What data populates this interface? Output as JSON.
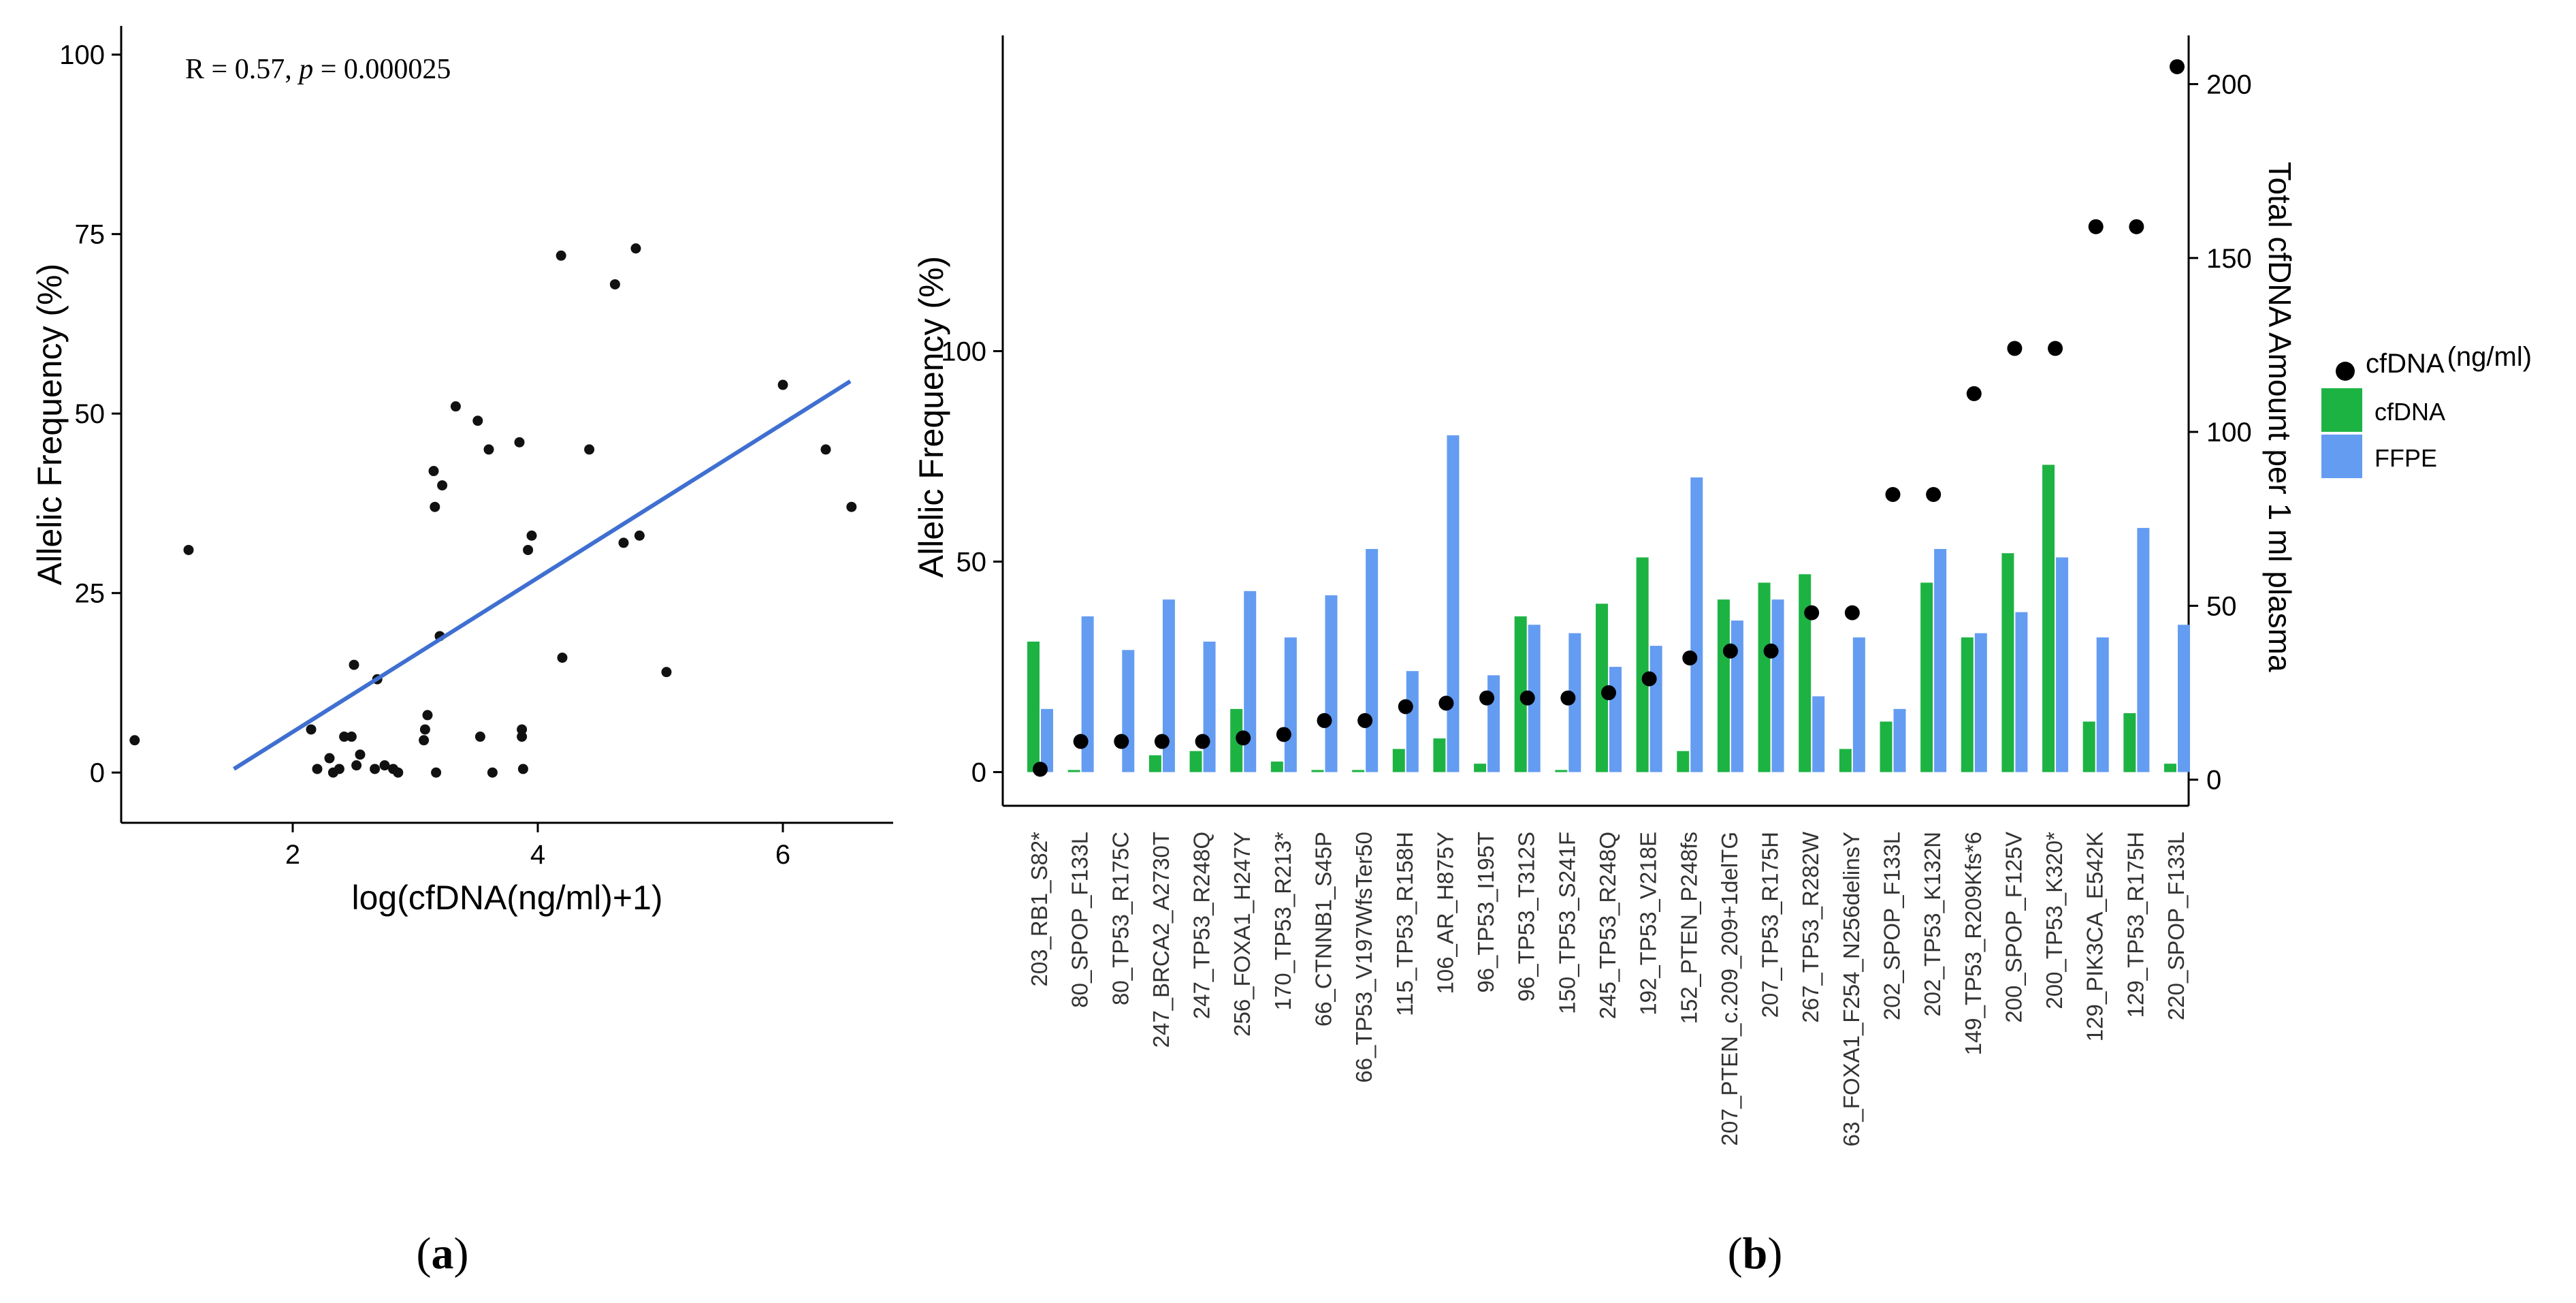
{
  "chart_data": [
    {
      "panel": "a",
      "type": "scatter",
      "annotation_prefix": "R = 0.57, ",
      "annotation_p": "p",
      "annotation_suffix": " = 0.000025",
      "xlabel": "log(cfDNA(ng/ml)+1)",
      "ylabel": "Allelic Frequency (%)",
      "xlim": [
        0.6,
        6.9
      ],
      "ylim": [
        -7,
        104
      ],
      "x_ticks": [
        2,
        4,
        6
      ],
      "x_tick_labels": [
        "2",
        "4",
        "6"
      ],
      "y_ticks": [
        0,
        25,
        50,
        75,
        100
      ],
      "y_tick_labels": [
        "0",
        "25",
        "50",
        "75",
        "100"
      ],
      "points": [
        [
          0.71,
          4.5
        ],
        [
          1.15,
          31
        ],
        [
          2.15,
          6
        ],
        [
          2.2,
          0.5
        ],
        [
          2.3,
          2
        ],
        [
          2.33,
          0
        ],
        [
          2.38,
          0.5
        ],
        [
          2.42,
          5
        ],
        [
          2.48,
          5
        ],
        [
          2.5,
          15
        ],
        [
          2.52,
          1
        ],
        [
          2.55,
          2.5
        ],
        [
          2.67,
          0.5
        ],
        [
          2.69,
          13
        ],
        [
          2.75,
          1
        ],
        [
          2.82,
          0.5
        ],
        [
          2.86,
          0
        ],
        [
          3.07,
          4.5
        ],
        [
          3.08,
          6
        ],
        [
          3.1,
          8
        ],
        [
          3.15,
          42
        ],
        [
          3.16,
          37
        ],
        [
          3.17,
          0
        ],
        [
          3.2,
          19
        ],
        [
          3.22,
          40
        ],
        [
          3.33,
          51
        ],
        [
          3.51,
          49
        ],
        [
          3.53,
          5
        ],
        [
          3.6,
          45
        ],
        [
          3.63,
          0
        ],
        [
          3.85,
          46
        ],
        [
          3.87,
          5
        ],
        [
          3.87,
          6
        ],
        [
          3.88,
          0.5
        ],
        [
          3.92,
          31
        ],
        [
          3.95,
          33
        ],
        [
          4.19,
          72
        ],
        [
          4.2,
          16
        ],
        [
          4.42,
          45
        ],
        [
          4.63,
          68
        ],
        [
          4.7,
          32
        ],
        [
          4.8,
          73
        ],
        [
          4.83,
          33
        ],
        [
          5.05,
          14
        ],
        [
          6.0,
          54
        ],
        [
          6.35,
          45
        ],
        [
          6.56,
          37
        ]
      ],
      "trend_line": {
        "x": [
          1.52,
          6.55
        ],
        "y": [
          0.5,
          54.5
        ]
      },
      "point_color": "#111111",
      "line_color": "#3f6fd1",
      "panel_label": "a"
    },
    {
      "panel": "b",
      "type": "bar",
      "ylabel": "Allelic Frequency (%)",
      "y2label": "Total cfDNA Amount per 1 ml plasma",
      "ylim": [
        -8,
        175
      ],
      "y_ticks": [
        0,
        50,
        100
      ],
      "y_tick_labels": [
        "0",
        "50",
        "100"
      ],
      "y2lim": [
        -7.5,
        214
      ],
      "y2_ticks": [
        0,
        50,
        100,
        150,
        200
      ],
      "y2_tick_labels": [
        "0",
        "50",
        "100",
        "150",
        "200"
      ],
      "categories": [
        "203_RB1_S82*",
        "80_SPOP_F133L",
        "80_TP53_R175C",
        "247_BRCA2_A2730T",
        "247_TP53_R248Q",
        "256_FOXA1_H247Y",
        "170_TP53_R213*",
        "66_CTNNB1_S45P",
        "66_TP53_V197WfsTer50",
        "115_TP53_R158H",
        "106_AR_H875Y",
        "96_TP53_I195T",
        "96_TP53_T312S",
        "150_TP53_S241F",
        "245_TP53_R248Q",
        "192_TP53_V218E",
        "152_PTEN_P248fs",
        "207_PTEN_c.209_209+1delTG",
        "207_TP53_R175H",
        "267_TP53_R282W",
        "63_FOXA1_F254_N256delinsY",
        "202_SPOP_F133L",
        "202_TP53_K132N",
        "149_TP53_R209Kfs*6",
        "200_SPOP_F125V",
        "200_TP53_K320*",
        "129_PIK3CA_E542K",
        "129_TP53_R175H",
        "220_SPOP_F133L"
      ],
      "series": [
        {
          "name": "cfDNA",
          "color": "#1db343",
          "values": [
            31,
            0.5,
            0,
            4,
            5,
            15,
            2.5,
            0.5,
            0.5,
            5.5,
            8,
            2,
            37,
            0.5,
            40,
            51,
            5,
            41,
            45,
            47,
            5.5,
            12,
            45,
            32,
            52,
            73,
            12,
            14,
            2
          ]
        },
        {
          "name": "FFPE",
          "color": "#649cf2",
          "values": [
            15,
            37,
            29,
            41,
            31,
            43,
            32,
            42,
            53,
            24,
            80,
            23,
            35,
            33,
            25,
            30,
            70,
            36,
            41,
            18,
            32,
            15,
            53,
            33,
            38,
            51,
            32,
            58,
            35
          ]
        }
      ],
      "points_series": {
        "name": "cfDNA",
        "unit": "(ng/ml)",
        "axis": "right",
        "color": "#000000",
        "values": [
          3,
          11,
          11,
          11,
          11,
          12,
          13,
          17,
          17,
          21,
          22,
          23.5,
          23.5,
          23.5,
          25,
          29,
          35,
          37,
          37,
          48,
          48,
          82,
          82,
          111,
          124,
          124,
          159,
          159,
          205
        ]
      },
      "panel_label": "b"
    }
  ]
}
